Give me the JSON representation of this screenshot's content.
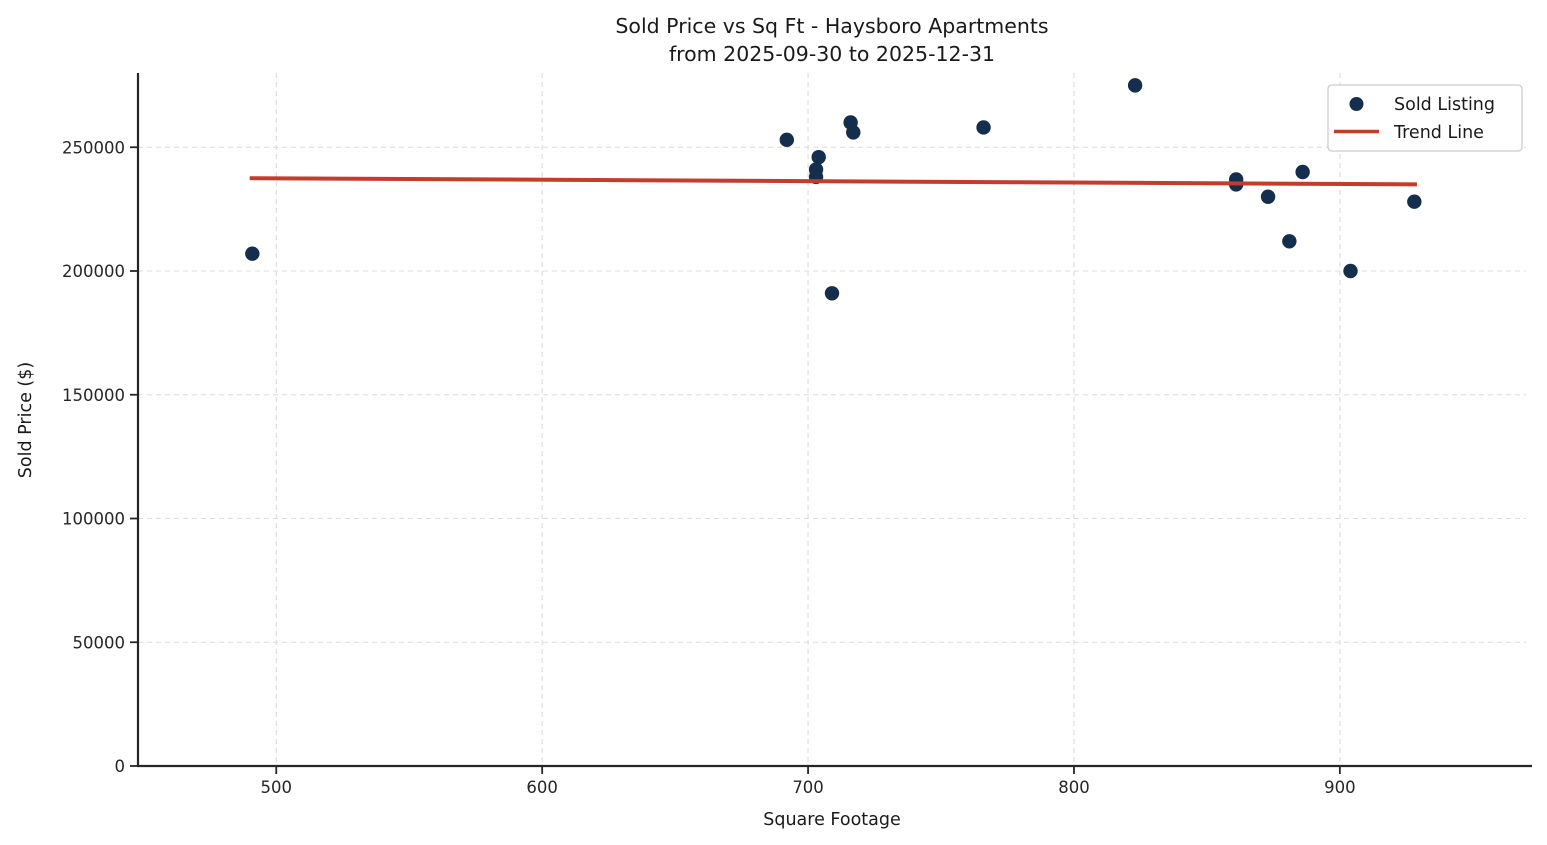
{
  "figure": {
    "title_line1": "Sold Price vs Sq Ft - Haysboro Apartments",
    "title_line2": "from 2025-09-30 to 2025-12-31",
    "xlabel": "Square Footage",
    "ylabel": "Sold Price ($)"
  },
  "legend": {
    "position": "upper right",
    "items": [
      {
        "label": "Sold Listing",
        "marker": "dot-icon",
        "color": "#152e4d"
      },
      {
        "label": "Trend Line",
        "marker": "line-icon",
        "color": "#c43c2b"
      }
    ]
  },
  "colors": {
    "scatter": "#152e4d",
    "trend": "#c43c2b",
    "spine": "#262626",
    "grid": "#dcdcdc",
    "background": "#ffffff",
    "legend_border": "#cccccc"
  },
  "chart_data": {
    "type": "scatter",
    "title": "Sold Price vs Sq Ft - Haysboro Apartments\nfrom 2025-09-30 to 2025-12-31",
    "xlabel": "Square Footage",
    "ylabel": "Sold Price ($)",
    "xlim": [
      448,
      970
    ],
    "ylim": [
      0,
      280000
    ],
    "x_ticks": [
      500,
      600,
      700,
      800,
      900
    ],
    "y_ticks": [
      0,
      50000,
      100000,
      150000,
      200000,
      250000
    ],
    "grid": true,
    "grid_style": "dashed",
    "legend_position": "upper right",
    "series": [
      {
        "name": "Sold Listing",
        "type": "scatter",
        "color": "#152e4d",
        "marker_radius": 7.2,
        "points": [
          [
            491,
            207000
          ],
          [
            692,
            253000
          ],
          [
            704,
            246000
          ],
          [
            703,
            241000
          ],
          [
            703,
            238000
          ],
          [
            716,
            260000
          ],
          [
            717,
            256000
          ],
          [
            709,
            191000
          ],
          [
            766,
            258000
          ],
          [
            823,
            275000
          ],
          [
            861,
            237000
          ],
          [
            861,
            235000
          ],
          [
            886,
            240000
          ],
          [
            873,
            230000
          ],
          [
            881,
            212000
          ],
          [
            904,
            200000
          ],
          [
            928,
            228000
          ]
        ]
      },
      {
        "name": "Trend Line",
        "type": "line",
        "color": "#c43c2b",
        "line_width": 4,
        "points": [
          [
            490,
            237500
          ],
          [
            929,
            235000
          ]
        ]
      }
    ]
  }
}
